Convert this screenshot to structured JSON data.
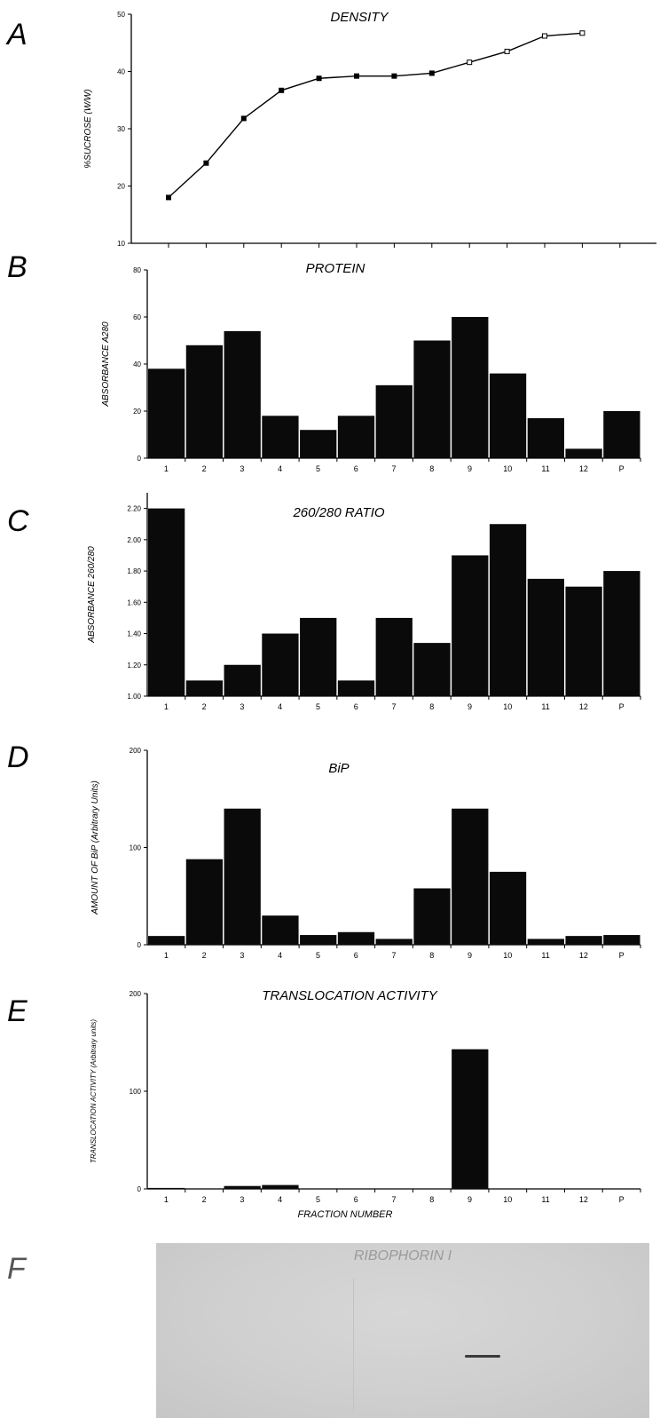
{
  "panel_letters": [
    "A",
    "B",
    "C",
    "D",
    "E",
    "F"
  ],
  "chart_data": [
    {
      "type": "line",
      "title": "DENSITY",
      "ylabel": "%SUCROSE (W/W)",
      "xlabel": "",
      "x": [
        1,
        2,
        3,
        4,
        5,
        6,
        7,
        8,
        9,
        10,
        11,
        12
      ],
      "values": [
        18,
        24,
        31.8,
        36.7,
        38.8,
        39.2,
        39.2,
        39.7,
        41.6,
        43.5,
        46.2,
        46.7
      ],
      "ylim": [
        10,
        50
      ],
      "yticks": [
        "10",
        "20",
        "30",
        "40",
        "50"
      ],
      "categories": []
    },
    {
      "type": "bar",
      "title": "PROTEIN",
      "ylabel": "ABSORBANCE A280",
      "xlabel": "",
      "categories": [
        "1",
        "2",
        "3",
        "4",
        "5",
        "6",
        "7",
        "8",
        "9",
        "10",
        "11",
        "12",
        "P"
      ],
      "values": [
        38,
        48,
        54,
        18,
        12,
        18,
        31,
        50,
        60,
        36,
        17,
        4,
        20
      ],
      "ylim": [
        0,
        80
      ],
      "yticks": [
        "0",
        "20",
        "40",
        "60",
        "80"
      ]
    },
    {
      "type": "bar",
      "title": "260/280 RATIO",
      "ylabel": "ABSORBANCE 260/280",
      "xlabel": "",
      "categories": [
        "1",
        "2",
        "3",
        "4",
        "5",
        "6",
        "7",
        "8",
        "9",
        "10",
        "11",
        "12",
        "P"
      ],
      "values": [
        2.2,
        1.1,
        1.2,
        1.4,
        1.5,
        1.1,
        1.5,
        1.34,
        1.9,
        2.1,
        1.75,
        1.7,
        1.8
      ],
      "ylim": [
        1.0,
        2.3
      ],
      "yticks": [
        "1.00",
        "1.20",
        "1.40",
        "1.60",
        "1.80",
        "2.00",
        "2.20"
      ]
    },
    {
      "type": "bar",
      "title": "BiP",
      "ylabel": "AMOUNT OF BiP (Arbitrary Units)",
      "xlabel": "",
      "categories": [
        "1",
        "2",
        "3",
        "4",
        "5",
        "6",
        "7",
        "8",
        "9",
        "10",
        "11",
        "12",
        "P"
      ],
      "values": [
        9,
        88,
        140,
        30,
        10,
        13,
        6,
        58,
        140,
        75,
        6,
        9,
        10
      ],
      "ylim": [
        0,
        200
      ],
      "yticks": [
        "0",
        "100",
        "200"
      ]
    },
    {
      "type": "bar",
      "title": "TRANSLOCATION ACTIVITY",
      "ylabel": "TRANSLOCATION ACTIVITY (Arbitrary units)",
      "xlabel": "FRACTION NUMBER",
      "categories": [
        "1",
        "2",
        "3",
        "4",
        "5",
        "6",
        "7",
        "8",
        "9",
        "10",
        "11",
        "12",
        "P"
      ],
      "values": [
        1,
        0.5,
        3,
        4,
        0,
        0,
        0,
        0,
        143,
        0,
        0,
        0,
        0
      ],
      "ylim": [
        0,
        200
      ],
      "yticks": [
        "0",
        "100",
        "200"
      ]
    }
  ],
  "blot": {
    "label": "RIBOPHORIN I",
    "band_fraction": "9"
  }
}
